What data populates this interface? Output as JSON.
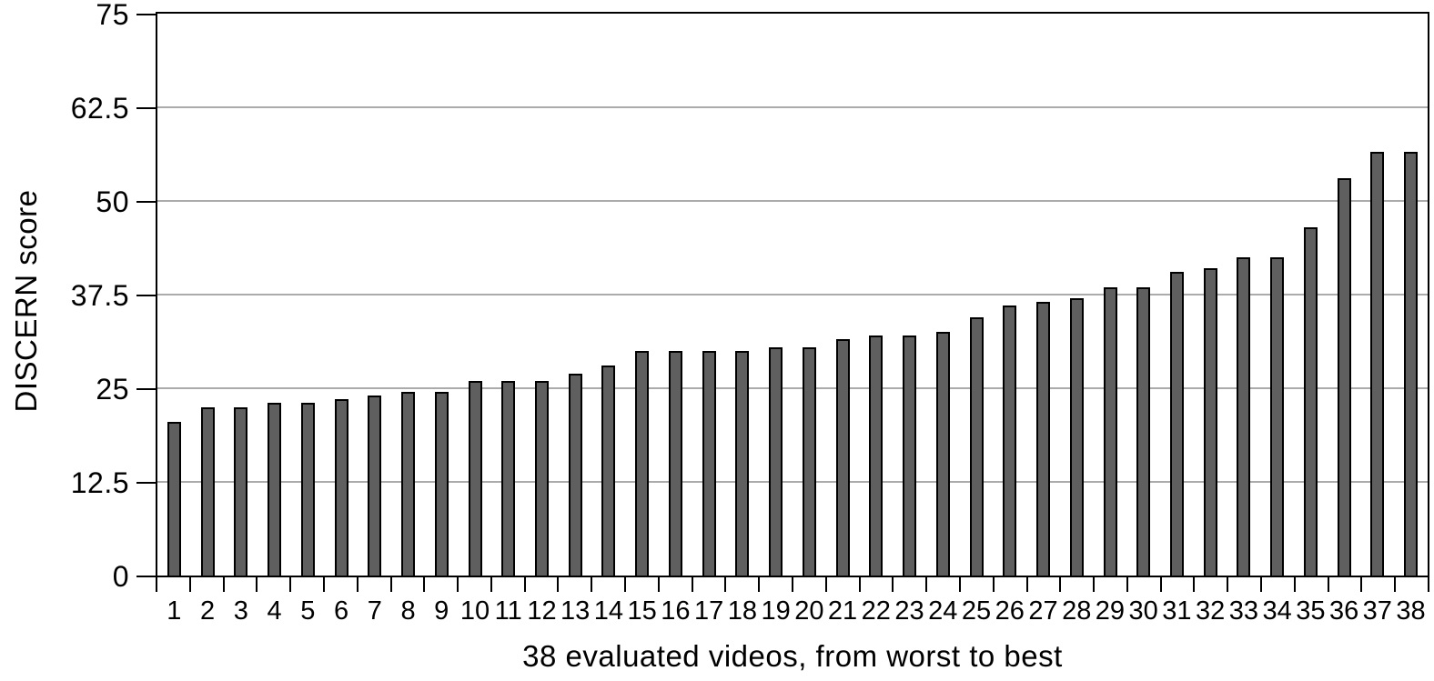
{
  "chart_data": {
    "type": "bar",
    "title": "",
    "xlabel": "38 evaluated videos, from worst to best",
    "ylabel": "DISCERN score",
    "categories": [
      "1",
      "2",
      "3",
      "4",
      "5",
      "6",
      "7",
      "8",
      "9",
      "10",
      "11",
      "12",
      "13",
      "14",
      "15",
      "16",
      "17",
      "18",
      "19",
      "20",
      "21",
      "22",
      "23",
      "24",
      "25",
      "26",
      "27",
      "28",
      "29",
      "30",
      "31",
      "32",
      "33",
      "34",
      "35",
      "36",
      "37",
      "38"
    ],
    "values": [
      20.5,
      22.5,
      22.5,
      23,
      23,
      23.5,
      24,
      24.5,
      24.5,
      26,
      26,
      26,
      27,
      28,
      30,
      30,
      30,
      30,
      30.5,
      30.5,
      31.5,
      32,
      32,
      32.5,
      34.5,
      36,
      36.5,
      37,
      38.5,
      38.5,
      40.5,
      41,
      42.5,
      42.5,
      46.5,
      53,
      56.5,
      56.5
    ],
    "ylim": [
      0,
      75
    ],
    "ytick_labels": [
      "0",
      "12.5",
      "25",
      "37.5",
      "50",
      "62.5",
      "75"
    ],
    "grid": "horizontal-gray-lines",
    "legend": "none",
    "bar_color": "#5f5f5f",
    "bar_border_color": "#000000",
    "gridline_color": "#ababab",
    "axis_color": "#000000"
  }
}
